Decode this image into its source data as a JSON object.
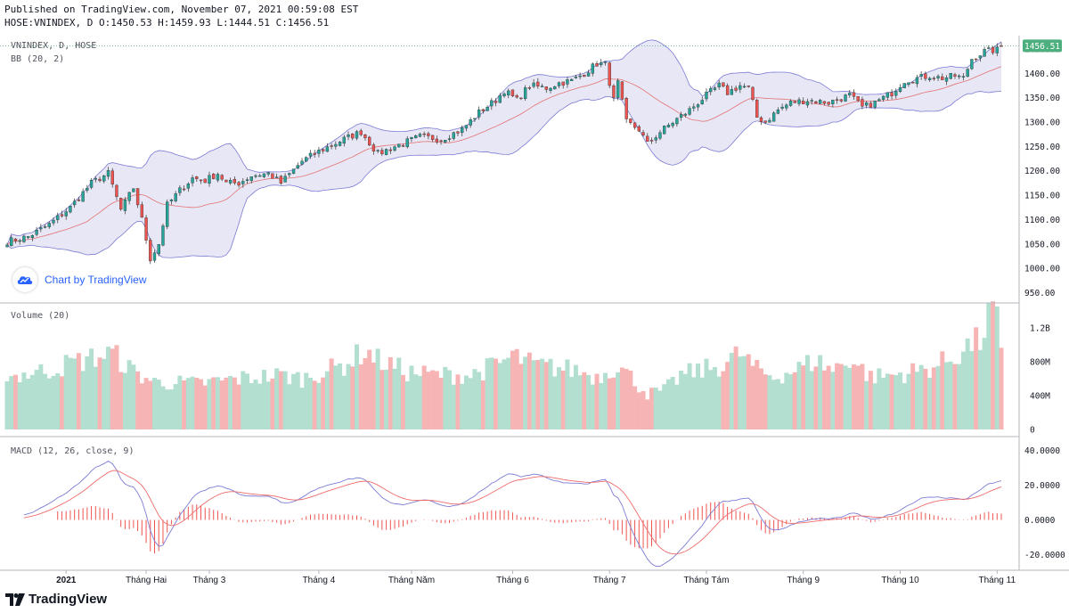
{
  "header": {
    "published": "Published on TradingView.com, November 07, 2021 00:59:08 EST",
    "ohlc": "HOSE:VNINDEX, D O:1450.53 H:1459.93 L:1444.51 C:1456.51"
  },
  "legend": {
    "symbol": "VNINDEX, D, HOSE",
    "bb": "BB (20, 2)",
    "volume": "Volume (20)",
    "macd": "MACD (12, 26, close, 9)"
  },
  "watermark": "Chart by TradingView",
  "footer": "TradingView",
  "last_price_label": "1456.51",
  "colors": {
    "up": "#26a69a",
    "down": "#ef5350",
    "up_vol": "#b2dfcf",
    "down_vol": "#f7b4b4",
    "band": "#7b7bd4",
    "band_fill": "#e7e7f5",
    "basis": "#e57373",
    "macd_line": "#7b7bd4",
    "signal_line": "#ef6c6c",
    "hist": "#ef5350",
    "last_price": "#4caf7d"
  },
  "chart_data": [
    {
      "type": "candlestick",
      "title": "VNINDEX, D, HOSE",
      "ylim": [
        940,
        1470
      ],
      "yticks": [
        "950.00",
        "1000.00",
        "1050.00",
        "1100.00",
        "1150.00",
        "1200.00",
        "1250.00",
        "1300.00",
        "1350.00",
        "1400.00",
        "1450.00"
      ],
      "x_labels": [
        "2021",
        "Tháng Hai",
        "Tháng 3",
        "Tháng 4",
        "Tháng Năm",
        "Tháng 6",
        "Tháng 7",
        "Tháng Tám",
        "Tháng 9",
        "Tháng 10",
        "Tháng 11"
      ],
      "x_label_index": [
        14,
        33,
        48,
        74,
        96,
        120,
        143,
        166,
        189,
        212,
        235
      ],
      "last_close": 1456.51,
      "close_anchors": [
        [
          0,
          1055
        ],
        [
          5,
          1065
        ],
        [
          10,
          1090
        ],
        [
          15,
          1125
        ],
        [
          20,
          1175
        ],
        [
          24,
          1195
        ],
        [
          27,
          1120
        ],
        [
          30,
          1165
        ],
        [
          32,
          1100
        ],
        [
          34,
          1020
        ],
        [
          36,
          1050
        ],
        [
          38,
          1130
        ],
        [
          41,
          1160
        ],
        [
          44,
          1185
        ],
        [
          47,
          1180
        ],
        [
          50,
          1195
        ],
        [
          52,
          1175
        ],
        [
          55,
          1175
        ],
        [
          58,
          1190
        ],
        [
          62,
          1195
        ],
        [
          65,
          1175
        ],
        [
          70,
          1220
        ],
        [
          74,
          1240
        ],
        [
          80,
          1265
        ],
        [
          84,
          1280
        ],
        [
          88,
          1235
        ],
        [
          92,
          1250
        ],
        [
          98,
          1270
        ],
        [
          103,
          1265
        ],
        [
          108,
          1285
        ],
        [
          112,
          1320
        ],
        [
          116,
          1345
        ],
        [
          118,
          1365
        ],
        [
          121,
          1345
        ],
        [
          124,
          1375
        ],
        [
          128,
          1370
        ],
        [
          131,
          1380
        ],
        [
          134,
          1385
        ],
        [
          137,
          1400
        ],
        [
          140,
          1420
        ],
        [
          142,
          1418
        ],
        [
          144,
          1345
        ],
        [
          145,
          1380
        ],
        [
          147,
          1300
        ],
        [
          150,
          1285
        ],
        [
          152,
          1255
        ],
        [
          155,
          1280
        ],
        [
          158,
          1300
        ],
        [
          162,
          1325
        ],
        [
          166,
          1355
        ],
        [
          169,
          1375
        ],
        [
          171,
          1360
        ],
        [
          174,
          1375
        ],
        [
          176,
          1370
        ],
        [
          178,
          1310
        ],
        [
          180,
          1300
        ],
        [
          183,
          1325
        ],
        [
          186,
          1340
        ],
        [
          190,
          1345
        ],
        [
          195,
          1340
        ],
        [
          200,
          1355
        ],
        [
          203,
          1330
        ],
        [
          206,
          1340
        ],
        [
          210,
          1360
        ],
        [
          213,
          1385
        ],
        [
          216,
          1390
        ],
        [
          219,
          1395
        ],
        [
          222,
          1390
        ],
        [
          225,
          1395
        ],
        [
          227,
          1390
        ],
        [
          229,
          1430
        ],
        [
          232,
          1445
        ],
        [
          235,
          1448
        ],
        [
          236,
          1456.51
        ]
      ],
      "bb_period": 20,
      "bb_mult": 2
    },
    {
      "type": "bar",
      "title": "Volume (20)",
      "ylim": [
        0,
        1450000000
      ],
      "yticks": [
        "0",
        "400M",
        "800M",
        "1.2B"
      ],
      "volume_anchors": [
        [
          0,
          620
        ],
        [
          10,
          700
        ],
        [
          15,
          780
        ],
        [
          25,
          900
        ],
        [
          30,
          680
        ],
        [
          35,
          560
        ],
        [
          45,
          540
        ],
        [
          55,
          600
        ],
        [
          65,
          640
        ],
        [
          70,
          600
        ],
        [
          80,
          760
        ],
        [
          85,
          930
        ],
        [
          88,
          820
        ],
        [
          95,
          680
        ],
        [
          100,
          650
        ],
        [
          110,
          640
        ],
        [
          118,
          800
        ],
        [
          120,
          870
        ],
        [
          125,
          760
        ],
        [
          135,
          700
        ],
        [
          140,
          620
        ],
        [
          145,
          760
        ],
        [
          148,
          620
        ],
        [
          152,
          420
        ],
        [
          156,
          460
        ],
        [
          160,
          640
        ],
        [
          165,
          700
        ],
        [
          170,
          760
        ],
        [
          174,
          900
        ],
        [
          178,
          700
        ],
        [
          182,
          620
        ],
        [
          188,
          720
        ],
        [
          192,
          820
        ],
        [
          196,
          700
        ],
        [
          200,
          840
        ],
        [
          205,
          620
        ],
        [
          210,
          640
        ],
        [
          215,
          680
        ],
        [
          220,
          740
        ],
        [
          225,
          860
        ],
        [
          228,
          980
        ],
        [
          231,
          1050
        ],
        [
          234,
          1450
        ],
        [
          236,
          860
        ]
      ]
    },
    {
      "type": "line",
      "title": "MACD (12, 26, close, 9)",
      "ylim": [
        -27,
        45
      ],
      "yticks": [
        "-20.0000",
        "0.0000",
        "20.0000",
        "40.0000"
      ],
      "series": [
        {
          "name": "MACD",
          "derive": "ema12-ema26"
        },
        {
          "name": "Signal",
          "derive": "ema9"
        },
        {
          "name": "Histogram",
          "derive": "macd-signal"
        }
      ]
    }
  ]
}
